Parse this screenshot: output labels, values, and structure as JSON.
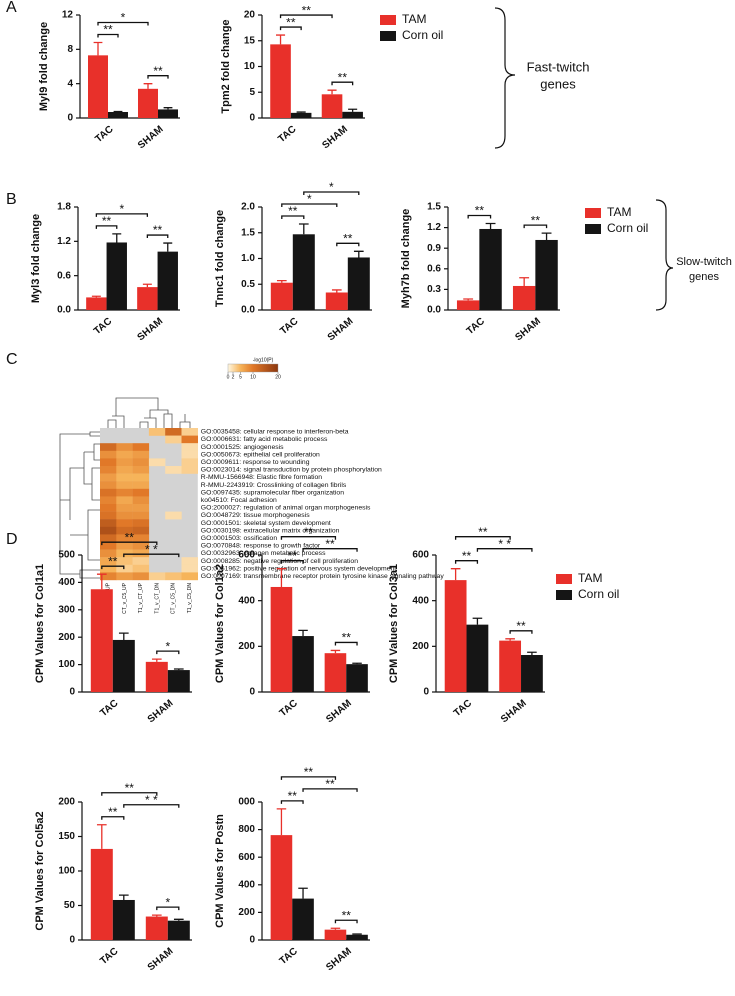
{
  "panel_labels": [
    "A",
    "B",
    "C",
    "D"
  ],
  "brace_labels": [
    [
      "Fast-twitch",
      "genes"
    ],
    [
      "Slow-twitch",
      "genes"
    ]
  ],
  "chart_data": [
    {
      "type": "bar",
      "ylabel": "Myl9 fold change",
      "categories": [
        "TAC",
        "SHAM"
      ],
      "series": [
        {
          "name": "TAM",
          "color": "#e8302a",
          "values": [
            7.3,
            3.4
          ],
          "errors": [
            1.5,
            0.6
          ]
        },
        {
          "name": "Corn oil",
          "color": "#151515",
          "values": [
            0.7,
            1.0
          ],
          "errors": [
            0.05,
            0.2
          ]
        }
      ],
      "ylim": [
        0,
        12
      ],
      "yticks": [
        0,
        4,
        8,
        12
      ],
      "annotations": [
        {
          "text": "**",
          "from": [
            "TAC",
            "TAM"
          ],
          "to": [
            "TAC",
            "Corn oil"
          ]
        },
        {
          "text": "*",
          "from": [
            "TAC",
            "TAM"
          ],
          "to": [
            "SHAM",
            "TAM"
          ]
        },
        {
          "text": "**",
          "from": [
            "SHAM",
            "TAM"
          ],
          "to": [
            "SHAM",
            "Corn oil"
          ]
        }
      ]
    },
    {
      "type": "bar",
      "ylabel": "Tpm2 fold change",
      "categories": [
        "TAC",
        "SHAM"
      ],
      "legend": true,
      "series": [
        {
          "name": "TAM",
          "color": "#e8302a",
          "values": [
            14.3,
            4.6
          ],
          "errors": [
            1.8,
            0.8
          ]
        },
        {
          "name": "Corn oil",
          "color": "#151515",
          "values": [
            1.0,
            1.2
          ],
          "errors": [
            0.15,
            0.5
          ]
        }
      ],
      "ylim": [
        0,
        20
      ],
      "yticks": [
        0,
        5,
        10,
        15,
        20
      ],
      "annotations": [
        {
          "text": "**",
          "from": [
            "TAC",
            "TAM"
          ],
          "to": [
            "TAC",
            "Corn oil"
          ]
        },
        {
          "text": "**",
          "from": [
            "TAC",
            "TAM"
          ],
          "to": [
            "SHAM",
            "TAM"
          ]
        },
        {
          "text": "**",
          "from": [
            "SHAM",
            "TAM"
          ],
          "to": [
            "SHAM",
            "Corn oil"
          ]
        }
      ]
    },
    {
      "type": "bar",
      "ylabel": "Myl3 fold change",
      "categories": [
        "TAC",
        "SHAM"
      ],
      "series": [
        {
          "name": "TAM",
          "color": "#e8302a",
          "values": [
            0.22,
            0.4
          ],
          "errors": [
            0.02,
            0.05
          ]
        },
        {
          "name": "Corn oil",
          "color": "#151515",
          "values": [
            1.18,
            1.02
          ],
          "errors": [
            0.15,
            0.15
          ]
        }
      ],
      "ylim": [
        0,
        1.8
      ],
      "yticks": [
        {
          "value": 0,
          "label": "0.0"
        },
        0.6,
        1.2,
        1.8
      ],
      "annotations": [
        {
          "text": "**",
          "from": [
            "TAC",
            "TAM"
          ],
          "to": [
            "TAC",
            "Corn oil"
          ]
        },
        {
          "text": "*",
          "from": [
            "TAC",
            "TAM"
          ],
          "to": [
            "SHAM",
            "TAM"
          ]
        },
        {
          "text": "**",
          "from": [
            "SHAM",
            "TAM"
          ],
          "to": [
            "SHAM",
            "Corn oil"
          ]
        }
      ]
    },
    {
      "type": "bar",
      "ylabel": "Tnnc1 fold change",
      "categories": [
        "TAC",
        "SHAM"
      ],
      "series": [
        {
          "name": "TAM",
          "color": "#e8302a",
          "values": [
            0.53,
            0.34
          ],
          "errors": [
            0.04,
            0.05
          ]
        },
        {
          "name": "Corn oil",
          "color": "#151515",
          "values": [
            1.47,
            1.02
          ],
          "errors": [
            0.2,
            0.12
          ]
        }
      ],
      "ylim": [
        0,
        2
      ],
      "yticks": [
        {
          "value": 0,
          "label": "0.0"
        },
        0.5,
        {
          "value": 1,
          "label": "1.0"
        },
        1.5,
        {
          "value": 2,
          "label": "2.0"
        }
      ],
      "annotations": [
        {
          "text": "**",
          "from": [
            "TAC",
            "TAM"
          ],
          "to": [
            "TAC",
            "Corn oil"
          ]
        },
        {
          "text": "*",
          "from": [
            "TAC",
            "TAM"
          ],
          "to": [
            "SHAM",
            "TAM"
          ]
        },
        {
          "text": "*",
          "from": [
            "TAC",
            "Corn oil"
          ],
          "to": [
            "SHAM",
            "Corn oil"
          ]
        },
        {
          "text": "**",
          "from": [
            "SHAM",
            "TAM"
          ],
          "to": [
            "SHAM",
            "Corn oil"
          ]
        }
      ]
    },
    {
      "type": "bar",
      "ylabel": "Myh7b fold change",
      "categories": [
        "TAC",
        "SHAM"
      ],
      "legend": true,
      "series": [
        {
          "name": "TAM",
          "color": "#e8302a",
          "values": [
            0.14,
            0.35
          ],
          "errors": [
            0.02,
            0.12
          ]
        },
        {
          "name": "Corn oil",
          "color": "#151515",
          "values": [
            1.18,
            1.02
          ],
          "errors": [
            0.08,
            0.1
          ]
        }
      ],
      "ylim": [
        0,
        1.5
      ],
      "yticks": [
        {
          "value": 0,
          "label": "0.0"
        },
        0.3,
        0.6,
        0.9,
        1.2,
        1.5
      ],
      "annotations": [
        {
          "text": "**",
          "from": [
            "TAC",
            "TAM"
          ],
          "to": [
            "TAC",
            "Corn oil"
          ]
        },
        {
          "text": "**",
          "from": [
            "SHAM",
            "TAM"
          ],
          "to": [
            "SHAM",
            "Corn oil"
          ]
        }
      ]
    },
    {
      "type": "heatmap",
      "colorbar_title": "-log10(P)",
      "clim": [
        0,
        20
      ],
      "colorbar_ticks": [
        0,
        2,
        5,
        10,
        20
      ],
      "columns": [
        "T1_v_C5_UP",
        "CT_v_C5_UP",
        "T1_v_CT_UP",
        "T1_v_CT_DN",
        "CT_v_C5_DN",
        "T1_v_C5_DN"
      ],
      "rows": [
        "GO:0035458: cellular response to interferon-beta",
        "GO:0006631: fatty acid metabolic process",
        "GO:0001525: angiogenesis",
        "GO:0050673: epithelial cell proliferation",
        "GO:0009611: response to wounding",
        "GO:0023014: signal transduction by protein phosphorylation",
        "R-MMU-1566948: Elastic fibre formation",
        "R-MMU-2243919: Crosslinking of collagen fibrils",
        "GO:0097435: supramolecular fiber organization",
        "ko04510: Focal adhesion",
        "GO:2000027: regulation of animal organ morphogenesis",
        "GO:0048729: tissue morphogenesis",
        "GO:0001501: skeletal system development",
        "GO:0030198: extracellular matrix organization",
        "GO:0001503: ossification",
        "GO:0070848: response to growth factor",
        "GO:0032963: collagen metabolic process",
        "GO:0008285: negative regulation of cell proliferation",
        "GO:0051962: positive regulation of nervous system development",
        "GO:0007169: transmembrane receptor protein tyrosine kinase signaling pathway"
      ],
      "values": [
        [
          null,
          null,
          null,
          4,
          12,
          3
        ],
        [
          null,
          null,
          null,
          null,
          3,
          10
        ],
        [
          12,
          8,
          10,
          null,
          null,
          2
        ],
        [
          8,
          6,
          7,
          null,
          null,
          2
        ],
        [
          10,
          7,
          8,
          2,
          null,
          3
        ],
        [
          9,
          6,
          7,
          null,
          2,
          3
        ],
        [
          7,
          5,
          5,
          null,
          null,
          null
        ],
        [
          8,
          6,
          6,
          null,
          null,
          null
        ],
        [
          11,
          9,
          10,
          null,
          null,
          null
        ],
        [
          9,
          6,
          8,
          null,
          null,
          null
        ],
        [
          10,
          7,
          7,
          null,
          null,
          null
        ],
        [
          11,
          8,
          8,
          null,
          2,
          null
        ],
        [
          14,
          10,
          11,
          null,
          null,
          null
        ],
        [
          16,
          12,
          13,
          null,
          null,
          null
        ],
        [
          12,
          9,
          9,
          null,
          null,
          null
        ],
        [
          10,
          7,
          8,
          null,
          null,
          null
        ],
        [
          8,
          5,
          6,
          null,
          null,
          null
        ],
        [
          6,
          4,
          3,
          null,
          null,
          2
        ],
        [
          5,
          3,
          4,
          null,
          null,
          2
        ],
        [
          9,
          7,
          8,
          3,
          4,
          5
        ]
      ]
    },
    {
      "type": "bar",
      "ylabel": "CPM Values for Col1a1",
      "categories": [
        "TAC",
        "SHAM"
      ],
      "series": [
        {
          "name": "TAM",
          "color": "#e8302a",
          "values": [
            375,
            110
          ],
          "errors": [
            55,
            10
          ]
        },
        {
          "name": "Corn oil",
          "color": "#151515",
          "values": [
            190,
            80
          ],
          "errors": [
            25,
            4
          ]
        }
      ],
      "ylim": [
        0,
        500
      ],
      "yticks": [
        0,
        100,
        200,
        300,
        400,
        500
      ],
      "annotations": [
        {
          "text": "**",
          "from": [
            "TAC",
            "TAM"
          ],
          "to": [
            "TAC",
            "Corn oil"
          ]
        },
        {
          "text": "*",
          "from": [
            "SHAM",
            "TAM"
          ],
          "to": [
            "SHAM",
            "Corn oil"
          ]
        },
        {
          "text": "* *",
          "from": [
            "TAC",
            "Corn oil"
          ],
          "to": [
            "SHAM",
            "Corn oil"
          ]
        },
        {
          "text": "**",
          "from": [
            "TAC",
            "TAM"
          ],
          "to": [
            "SHAM",
            "TAM"
          ]
        }
      ]
    },
    {
      "type": "bar",
      "ylabel": "CPM Values for Col1a2",
      "categories": [
        "TAC",
        "SHAM"
      ],
      "series": [
        {
          "name": "TAM",
          "color": "#e8302a",
          "values": [
            460,
            170
          ],
          "errors": [
            80,
            12
          ]
        },
        {
          "name": "Corn oil",
          "color": "#151515",
          "values": [
            245,
            122
          ],
          "errors": [
            25,
            4
          ]
        }
      ],
      "ylim": [
        0,
        600
      ],
      "yticks": [
        0,
        200,
        400,
        600
      ],
      "annotations": [
        {
          "text": "**",
          "from": [
            "TAC",
            "TAM"
          ],
          "to": [
            "TAC",
            "Corn oil"
          ]
        },
        {
          "text": "**",
          "from": [
            "SHAM",
            "TAM"
          ],
          "to": [
            "SHAM",
            "Corn oil"
          ]
        },
        {
          "text": "**",
          "from": [
            "TAC",
            "Corn oil"
          ],
          "to": [
            "SHAM",
            "Corn oil"
          ]
        },
        {
          "text": "**",
          "from": [
            "TAC",
            "TAM"
          ],
          "to": [
            "SHAM",
            "TAM"
          ]
        }
      ]
    },
    {
      "type": "bar",
      "ylabel": "CPM Values for Col3a1",
      "categories": [
        "TAC",
        "SHAM"
      ],
      "legend": true,
      "series": [
        {
          "name": "TAM",
          "color": "#e8302a",
          "values": [
            490,
            225
          ],
          "errors": [
            50,
            8
          ]
        },
        {
          "name": "Corn oil",
          "color": "#151515",
          "values": [
            295,
            162
          ],
          "errors": [
            28,
            12
          ]
        }
      ],
      "ylim": [
        0,
        600
      ],
      "yticks": [
        0,
        200,
        400,
        600
      ],
      "annotations": [
        {
          "text": "**",
          "from": [
            "TAC",
            "TAM"
          ],
          "to": [
            "TAC",
            "Corn oil"
          ]
        },
        {
          "text": "**",
          "from": [
            "SHAM",
            "TAM"
          ],
          "to": [
            "SHAM",
            "Corn oil"
          ]
        },
        {
          "text": "* *",
          "from": [
            "TAC",
            "Corn oil"
          ],
          "to": [
            "SHAM",
            "Corn oil"
          ]
        },
        {
          "text": "**",
          "from": [
            "TAC",
            "TAM"
          ],
          "to": [
            "SHAM",
            "TAM"
          ]
        }
      ]
    },
    {
      "type": "bar",
      "ylabel": "CPM Values for Col5a2",
      "categories": [
        "TAC",
        "SHAM"
      ],
      "series": [
        {
          "name": "TAM",
          "color": "#e8302a",
          "values": [
            132,
            34
          ],
          "errors": [
            35,
            2
          ]
        },
        {
          "name": "Corn oil",
          "color": "#151515",
          "values": [
            58,
            28
          ],
          "errors": [
            7,
            2
          ]
        }
      ],
      "ylim": [
        0,
        200
      ],
      "yticks": [
        0,
        50,
        100,
        150,
        200
      ],
      "annotations": [
        {
          "text": "**",
          "from": [
            "TAC",
            "TAM"
          ],
          "to": [
            "TAC",
            "Corn oil"
          ]
        },
        {
          "text": "*",
          "from": [
            "SHAM",
            "TAM"
          ],
          "to": [
            "SHAM",
            "Corn oil"
          ]
        },
        {
          "text": "* *",
          "from": [
            "TAC",
            "Corn oil"
          ],
          "to": [
            "SHAM",
            "Corn oil"
          ]
        },
        {
          "text": "**",
          "from": [
            "TAC",
            "TAM"
          ],
          "to": [
            "SHAM",
            "TAM"
          ]
        }
      ]
    },
    {
      "type": "bar",
      "ylabel": "CPM Values for Postn",
      "categories": [
        "TAC",
        "SHAM"
      ],
      "series": [
        {
          "name": "TAM",
          "color": "#e8302a",
          "values": [
            760,
            75
          ],
          "errors": [
            190,
            10
          ]
        },
        {
          "name": "Corn oil",
          "color": "#151515",
          "values": [
            300,
            38
          ],
          "errors": [
            75,
            5
          ]
        }
      ],
      "ylim": [
        0,
        1000
      ],
      "yticks": [
        0,
        200,
        400,
        600,
        800,
        {
          "value": 1000,
          "label": "000"
        }
      ],
      "annotations": [
        {
          "text": "**",
          "from": [
            "TAC",
            "TAM"
          ],
          "to": [
            "TAC",
            "Corn oil"
          ]
        },
        {
          "text": "**",
          "from": [
            "SHAM",
            "TAM"
          ],
          "to": [
            "SHAM",
            "Corn oil"
          ]
        },
        {
          "text": "**",
          "from": [
            "TAC",
            "Corn oil"
          ],
          "to": [
            "SHAM",
            "Corn oil"
          ]
        },
        {
          "text": "**",
          "from": [
            "TAC",
            "TAM"
          ],
          "to": [
            "SHAM",
            "TAM"
          ]
        }
      ]
    }
  ]
}
